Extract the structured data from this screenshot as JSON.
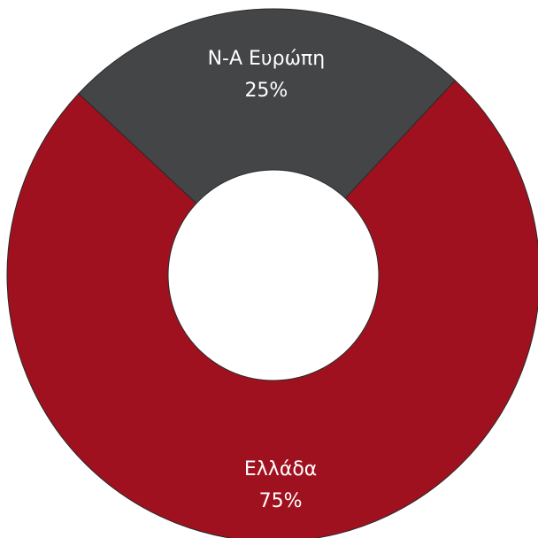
{
  "chart_data": {
    "type": "pie",
    "variant": "donut",
    "title": "",
    "slices": [
      {
        "label": "Ελλάδα",
        "value": 75,
        "value_label": "75%",
        "color": "#a0111f"
      },
      {
        "label": "Ν-Α Ευρώπη",
        "value": 25,
        "value_label": "25%",
        "color": "#444547"
      }
    ],
    "legend": "none",
    "slice_stroke_color": "#2a2a2a"
  }
}
